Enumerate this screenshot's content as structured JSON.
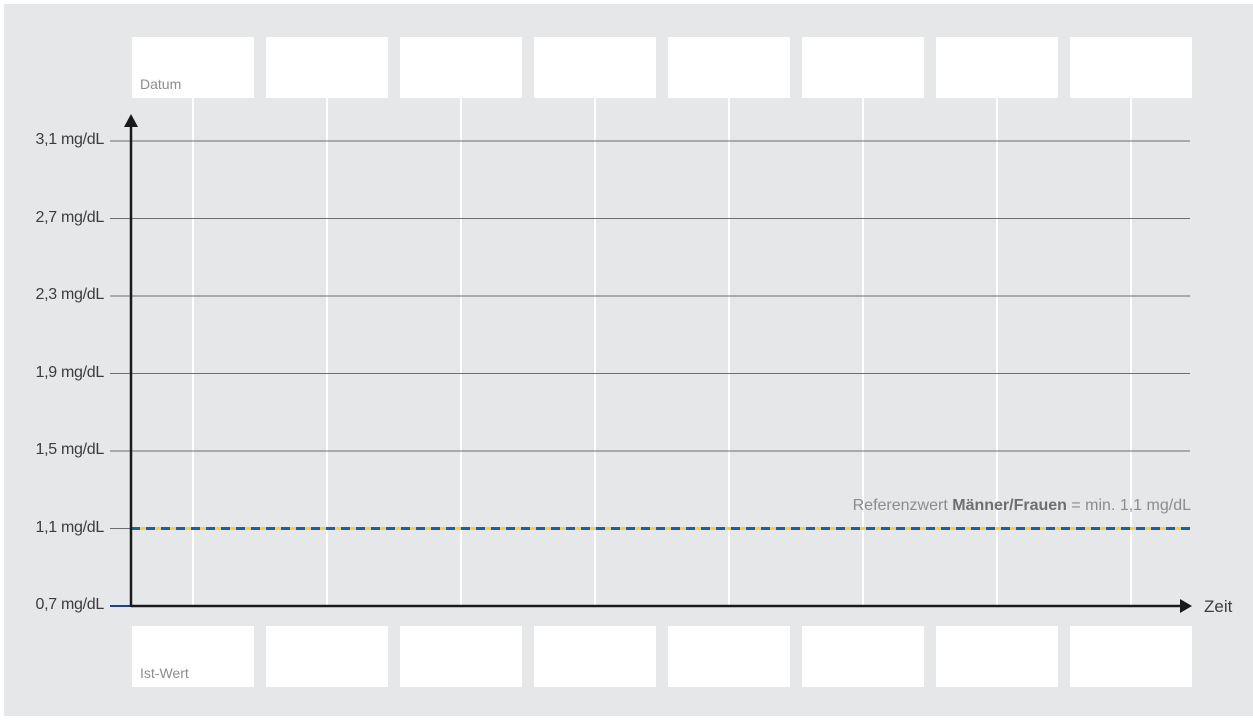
{
  "chart_data": {
    "type": "line",
    "x_axis_label": "Zeit",
    "header_row_label": "Datum",
    "footer_row_label": "Ist-Wert",
    "date_slots": 8,
    "yticks": [
      {
        "value": 3.1,
        "label": "3,1 mg/dL"
      },
      {
        "value": 2.7,
        "label": "2,7 mg/dL"
      },
      {
        "value": 2.3,
        "label": "2,3 mg/dL"
      },
      {
        "value": 1.9,
        "label": "1,9 mg/dL"
      },
      {
        "value": 1.5,
        "label": "1,5 mg/dL"
      },
      {
        "value": 1.1,
        "label": "1,1 mg/dL"
      },
      {
        "value": 0.7,
        "label": "0,7 mg/dL"
      }
    ],
    "ylim": [
      0.7,
      3.1
    ],
    "grid": true,
    "reference_line": {
      "value": 1.1,
      "label_prefix": "Referenzwert",
      "label_bold": "Männer/Frauen",
      "label_suffix": "= min. 1,1 mg/dL",
      "colors": [
        "#1a5fa8",
        "#f2d33d"
      ]
    },
    "series": []
  }
}
